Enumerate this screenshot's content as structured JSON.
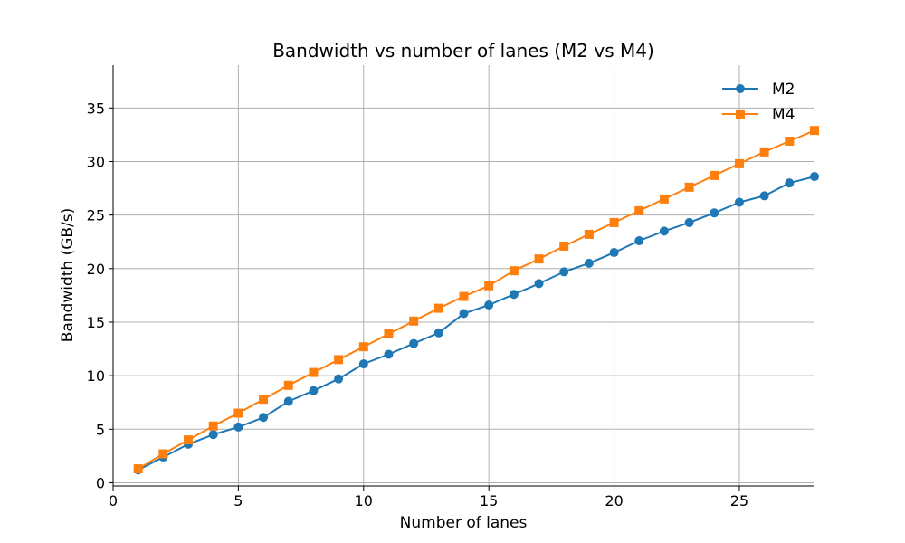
{
  "chart_data": {
    "type": "line",
    "title": "Bandwidth vs number of lanes (M2 vs M4)",
    "xlabel": "Number of lanes",
    "ylabel": "Bandwidth (GB/s)",
    "xlim": [
      0,
      28
    ],
    "ylim": [
      -0.3,
      39
    ],
    "xticks": [
      0,
      5,
      10,
      15,
      20,
      25
    ],
    "yticks": [
      0,
      5,
      10,
      15,
      20,
      25,
      30,
      35
    ],
    "grid": true,
    "legend_position": "top-right",
    "x": [
      1,
      2,
      3,
      4,
      5,
      6,
      7,
      8,
      9,
      10,
      11,
      12,
      13,
      14,
      15,
      16,
      17,
      18,
      19,
      20,
      21,
      22,
      23,
      24,
      25,
      26,
      27,
      28
    ],
    "series": [
      {
        "name": "M2",
        "color": "#1f77b4",
        "marker": "circle",
        "values": [
          1.2,
          2.4,
          3.6,
          4.5,
          5.2,
          6.1,
          7.6,
          8.6,
          9.7,
          11.1,
          12.0,
          13.0,
          14.0,
          15.8,
          16.6,
          17.6,
          18.6,
          19.7,
          20.5,
          21.5,
          22.6,
          23.5,
          24.3,
          25.2,
          26.2,
          26.8,
          28.0,
          28.6
        ]
      },
      {
        "name": "M4",
        "color": "#ff7f0e",
        "marker": "square",
        "values": [
          1.3,
          2.7,
          4.0,
          5.3,
          6.5,
          7.8,
          9.1,
          10.3,
          11.5,
          12.7,
          13.9,
          15.1,
          16.3,
          17.4,
          18.4,
          19.8,
          20.9,
          22.1,
          23.2,
          24.3,
          25.4,
          26.5,
          27.6,
          28.7,
          29.8,
          30.9,
          31.9,
          32.9
        ]
      }
    ]
  }
}
